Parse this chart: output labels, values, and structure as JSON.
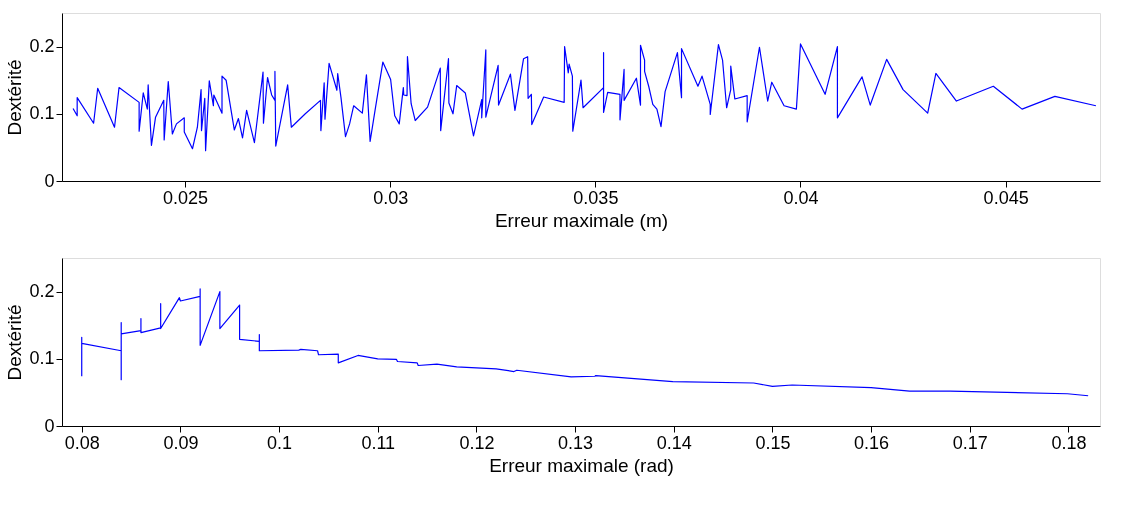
{
  "chart_data": [
    {
      "type": "line",
      "xlabel": "Erreur maximale (m)",
      "ylabel": "Dextérité",
      "xlim": [
        0.022,
        0.0473
      ],
      "ylim": [
        0,
        0.25
      ],
      "xticks": [
        0.025,
        0.03,
        0.035,
        0.04,
        0.045
      ],
      "yticks": [
        0,
        0.1,
        0.2
      ],
      "grid": false,
      "marker": "none",
      "line_style": "solid",
      "x": [
        0.02227,
        0.02237,
        0.02237,
        0.02277,
        0.02287,
        0.02328,
        0.02339,
        0.02388,
        0.02388,
        0.02398,
        0.02408,
        0.0241,
        0.02418,
        0.02428,
        0.02448,
        0.02449,
        0.02459,
        0.02469,
        0.02479,
        0.02498,
        0.02498,
        0.02518,
        0.0253,
        0.02539,
        0.0254,
        0.02548,
        0.0255,
        0.02559,
        0.02569,
        0.0257,
        0.0259,
        0.0259,
        0.026,
        0.0262,
        0.0263,
        0.0264,
        0.0265,
        0.02669,
        0.0269,
        0.02691,
        0.02701,
        0.02711,
        0.02719,
        0.02719,
        0.02721,
        0.0275,
        0.02759,
        0.02793,
        0.0283,
        0.02831,
        0.02839,
        0.02841,
        0.02851,
        0.0287,
        0.02872,
        0.0288,
        0.02891,
        0.02901,
        0.02911,
        0.02932,
        0.02942,
        0.02951,
        0.02963,
        0.02982,
        0.03001,
        0.03011,
        0.03022,
        0.03032,
        0.03033,
        0.03041,
        0.03042,
        0.03051,
        0.03061,
        0.03091,
        0.03122,
        0.03123,
        0.03142,
        0.03143,
        0.03153,
        0.03162,
        0.03183,
        0.03203,
        0.03223,
        0.03223,
        0.03233,
        0.03233,
        0.03263,
        0.03264,
        0.03293,
        0.03304,
        0.03325,
        0.03335,
        0.03336,
        0.03344,
        0.03345,
        0.03374,
        0.03424,
        0.03425,
        0.03434,
        0.03436,
        0.03444,
        0.03445,
        0.03465,
        0.0347,
        0.0352,
        0.0352,
        0.0352,
        0.0353,
        0.0356,
        0.0356,
        0.0357,
        0.0357,
        0.036,
        0.0361,
        0.0361,
        0.0362,
        0.0362,
        0.0363,
        0.0364,
        0.0365,
        0.0366,
        0.0367,
        0.037,
        0.0371,
        0.0371,
        0.0375,
        0.0376,
        0.0378,
        0.0378,
        0.038,
        0.0381,
        0.0382,
        0.0383,
        0.0383,
        0.0384,
        0.0387,
        0.0387,
        0.039,
        0.0392,
        0.0393,
        0.0396,
        0.0399,
        0.04,
        0.0406,
        0.0409,
        0.0409,
        0.0415,
        0.0417,
        0.0421,
        0.0425,
        0.0431,
        0.0433,
        0.0438,
        0.0447,
        0.0454,
        0.0462,
        0.0472
      ],
      "series": [
        {
          "color": "#0000ff",
          "values": [
            0.108,
            0.097,
            0.124,
            0.086,
            0.138,
            0.08,
            0.139,
            0.117,
            0.074,
            0.131,
            0.107,
            0.143,
            0.053,
            0.095,
            0.12,
            0.061,
            0.148,
            0.07,
            0.085,
            0.094,
            0.073,
            0.048,
            0.08,
            0.136,
            0.075,
            0.123,
            0.045,
            0.149,
            0.112,
            0.128,
            0.101,
            0.156,
            0.15,
            0.076,
            0.093,
            0.064,
            0.105,
            0.057,
            0.162,
            0.086,
            0.154,
            0.128,
            0.12,
            0.163,
            0.052,
            0.143,
            0.08,
            0.1,
            0.12,
            0.075,
            0.146,
            0.092,
            0.175,
            0.135,
            0.16,
            0.124,
            0.066,
            0.085,
            0.112,
            0.101,
            0.158,
            0.059,
            0.105,
            0.177,
            0.151,
            0.097,
            0.085,
            0.139,
            0.128,
            0.127,
            0.185,
            0.115,
            0.09,
            0.11,
            0.168,
            0.075,
            0.182,
            0.116,
            0.1,
            0.142,
            0.131,
            0.067,
            0.121,
            0.094,
            0.195,
            0.095,
            0.172,
            0.113,
            0.159,
            0.105,
            0.182,
            0.185,
            0.123,
            0.129,
            0.084,
            0.125,
            0.117,
            0.2,
            0.161,
            0.174,
            0.156,
            0.074,
            0.15,
            0.109,
            0.139,
            0.191,
            0.102,
            0.132,
            0.129,
            0.091,
            0.166,
            0.12,
            0.153,
            0.113,
            0.202,
            0.18,
            0.163,
            0.141,
            0.114,
            0.107,
            0.081,
            0.133,
            0.191,
            0.124,
            0.197,
            0.141,
            0.156,
            0.114,
            0.099,
            0.203,
            0.18,
            0.109,
            0.136,
            0.171,
            0.122,
            0.127,
            0.088,
            0.199,
            0.119,
            0.147,
            0.112,
            0.107,
            0.204,
            0.129,
            0.2,
            0.094,
            0.155,
            0.113,
            0.181,
            0.136,
            0.101,
            0.16,
            0.119,
            0.141,
            0.107,
            0.126,
            0.112
          ]
        }
      ]
    },
    {
      "type": "line",
      "xlabel": "Erreur maximale (rad)",
      "ylabel": "Dextérité",
      "xlim": [
        0.078,
        0.1832
      ],
      "ylim": [
        0,
        0.25
      ],
      "xticks": [
        0.08,
        0.09,
        0.1,
        0.11,
        0.12,
        0.13,
        0.14,
        0.15,
        0.16,
        0.17,
        0.18
      ],
      "yticks": [
        0,
        0.1,
        0.2
      ],
      "grid": false,
      "marker": "none",
      "line_style": "solid",
      "x": [
        0.08,
        0.08,
        0.08,
        0.084,
        0.084,
        0.084,
        0.084,
        0.086,
        0.086,
        0.086,
        0.088,
        0.088,
        0.088,
        0.0899,
        0.09,
        0.092,
        0.092,
        0.092,
        0.094,
        0.094,
        0.096,
        0.096,
        0.098,
        0.098,
        0.098,
        0.102,
        0.1022,
        0.1039,
        0.104,
        0.106,
        0.106,
        0.108,
        0.11,
        0.1119,
        0.112,
        0.114,
        0.1141,
        0.116,
        0.118,
        0.122,
        0.1238,
        0.1241,
        0.1296,
        0.132,
        0.1321,
        0.1347,
        0.1399,
        0.1481,
        0.15,
        0.152,
        0.16,
        0.1639,
        0.168,
        0.1799,
        0.182
      ],
      "series": [
        {
          "color": "#0000ff",
          "values": [
            0.074,
            0.132,
            0.123,
            0.112,
            0.069,
            0.154,
            0.137,
            0.142,
            0.16,
            0.139,
            0.146,
            0.182,
            0.145,
            0.191,
            0.186,
            0.193,
            0.204,
            0.12,
            0.2,
            0.145,
            0.18,
            0.129,
            0.126,
            0.136,
            0.112,
            0.113,
            0.114,
            0.112,
            0.106,
            0.107,
            0.094,
            0.105,
            0.1,
            0.099,
            0.096,
            0.094,
            0.09,
            0.092,
            0.088,
            0.085,
            0.081,
            0.083,
            0.073,
            0.074,
            0.075,
            0.072,
            0.066,
            0.064,
            0.059,
            0.061,
            0.057,
            0.052,
            0.052,
            0.048,
            0.045
          ]
        }
      ]
    }
  ]
}
